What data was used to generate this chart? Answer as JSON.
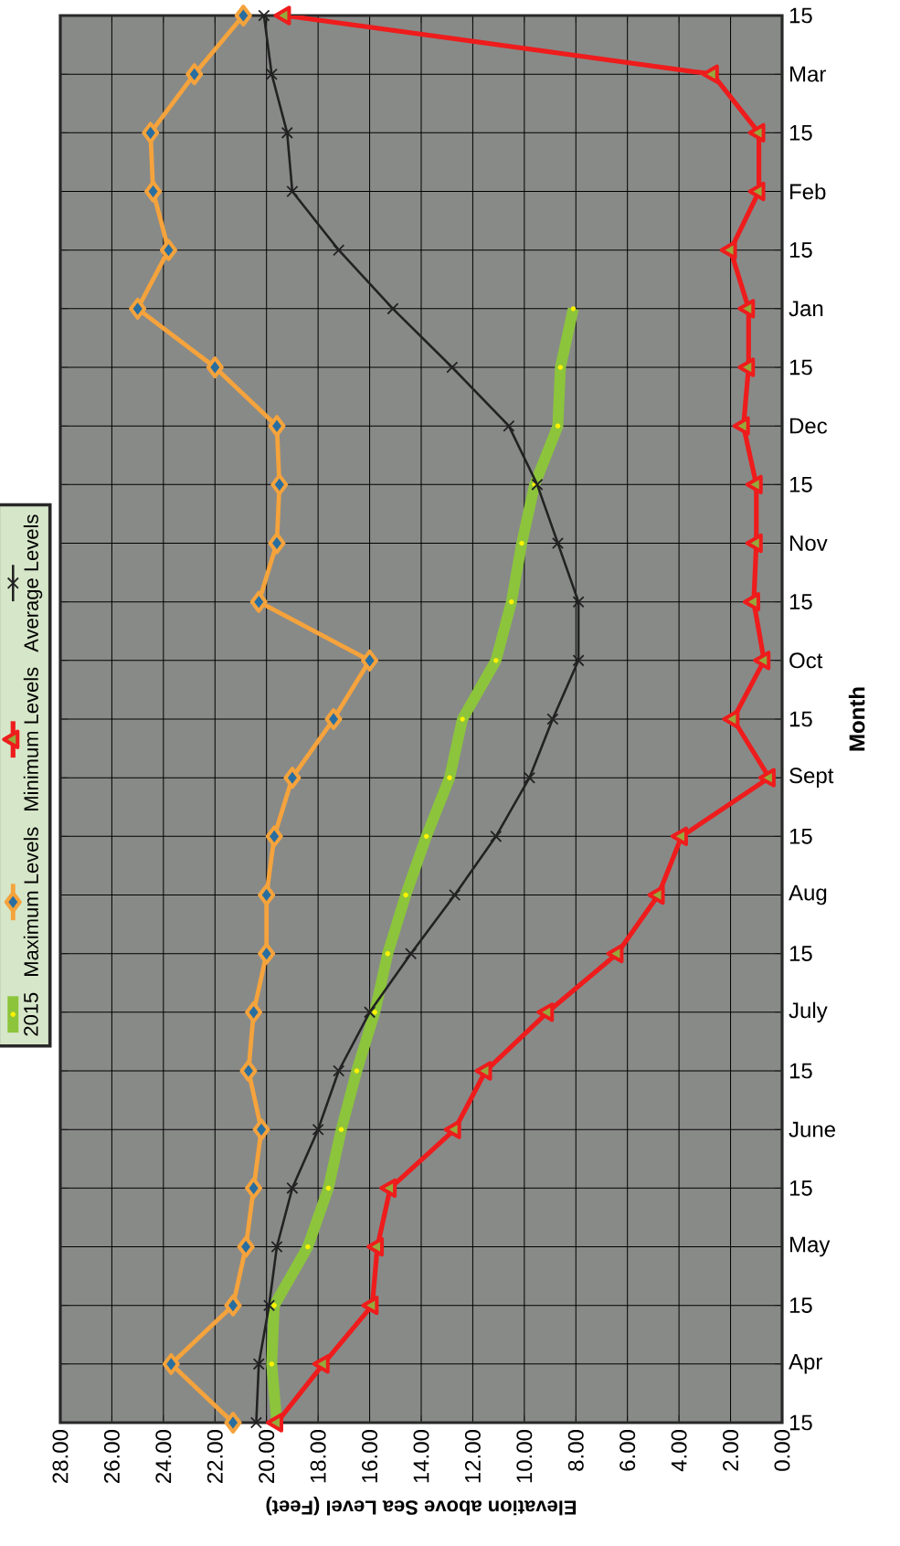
{
  "chart_data": {
    "type": "line",
    "orientation": "horizontal",
    "xlabel": "Elevation above Sea Level (Feet)",
    "ylabel": "Month",
    "categories": [
      "15",
      "Mar",
      "15",
      "Feb",
      "15",
      "Jan",
      "15",
      "Dec",
      "15",
      "Nov",
      "15",
      "Oct",
      "15",
      "Sept",
      "15",
      "Aug",
      "15",
      "July",
      "15",
      "June",
      "15",
      "May",
      "15",
      "Apr",
      "15"
    ],
    "xlim": [
      28,
      0
    ],
    "xticks": [
      {
        "value": 28,
        "label": "28.00"
      },
      {
        "value": 26,
        "label": "26.00"
      },
      {
        "value": 24,
        "label": "24.00"
      },
      {
        "value": 22,
        "label": "22.00"
      },
      {
        "value": 20,
        "label": "20.00"
      },
      {
        "value": 18,
        "label": "18.00"
      },
      {
        "value": 16,
        "label": "16.00"
      },
      {
        "value": 14,
        "label": "14.00"
      },
      {
        "value": 12,
        "label": "12.00"
      },
      {
        "value": 10,
        "label": "10.00"
      },
      {
        "value": 8,
        "label": "8.00"
      },
      {
        "value": 6,
        "label": "6.00"
      },
      {
        "value": 4,
        "label": "4.00"
      },
      {
        "value": 2,
        "label": "2.00"
      },
      {
        "value": 0,
        "label": "0.00"
      }
    ],
    "grid": true,
    "legend": "left",
    "series": [
      {
        "name": "2015",
        "color": "#8cc43c",
        "marker": "circle",
        "values": [
          null,
          null,
          null,
          null,
          null,
          8.1,
          8.6,
          8.7,
          9.6,
          10.1,
          10.5,
          11.1,
          12.4,
          12.9,
          13.8,
          14.6,
          15.3,
          15.8,
          16.5,
          17.1,
          17.6,
          18.4,
          19.7,
          19.8,
          19.6
        ]
      },
      {
        "name": "Maximum Levels",
        "color": "#f5a33c",
        "marker": "diamond",
        "values": [
          20.9,
          22.8,
          24.5,
          24.4,
          23.8,
          25.0,
          22.0,
          19.6,
          19.5,
          19.6,
          20.3,
          16.0,
          17.4,
          19.0,
          19.7,
          20.0,
          20.0,
          20.5,
          20.7,
          20.2,
          20.5,
          20.8,
          21.3,
          23.7,
          21.3
        ]
      },
      {
        "name": "Minimum Levels",
        "color": "#ee1c1c",
        "marker": "triangle",
        "values": [
          19.3,
          2.7,
          0.9,
          0.9,
          2.0,
          1.3,
          1.3,
          1.5,
          1.0,
          1.0,
          1.1,
          0.7,
          1.9,
          0.5,
          3.9,
          4.8,
          6.4,
          9.1,
          11.5,
          12.7,
          15.2,
          15.7,
          15.9,
          17.8,
          19.6
        ]
      },
      {
        "name": "Average Levels",
        "color": "#222222",
        "marker": "cross",
        "values": [
          20.1,
          19.8,
          19.2,
          19.0,
          17.2,
          15.1,
          12.8,
          10.6,
          9.5,
          8.7,
          7.9,
          7.9,
          8.9,
          9.8,
          11.1,
          12.7,
          14.4,
          16.0,
          17.2,
          18.0,
          19.0,
          19.6,
          19.9,
          20.3,
          20.4
        ]
      }
    ]
  }
}
